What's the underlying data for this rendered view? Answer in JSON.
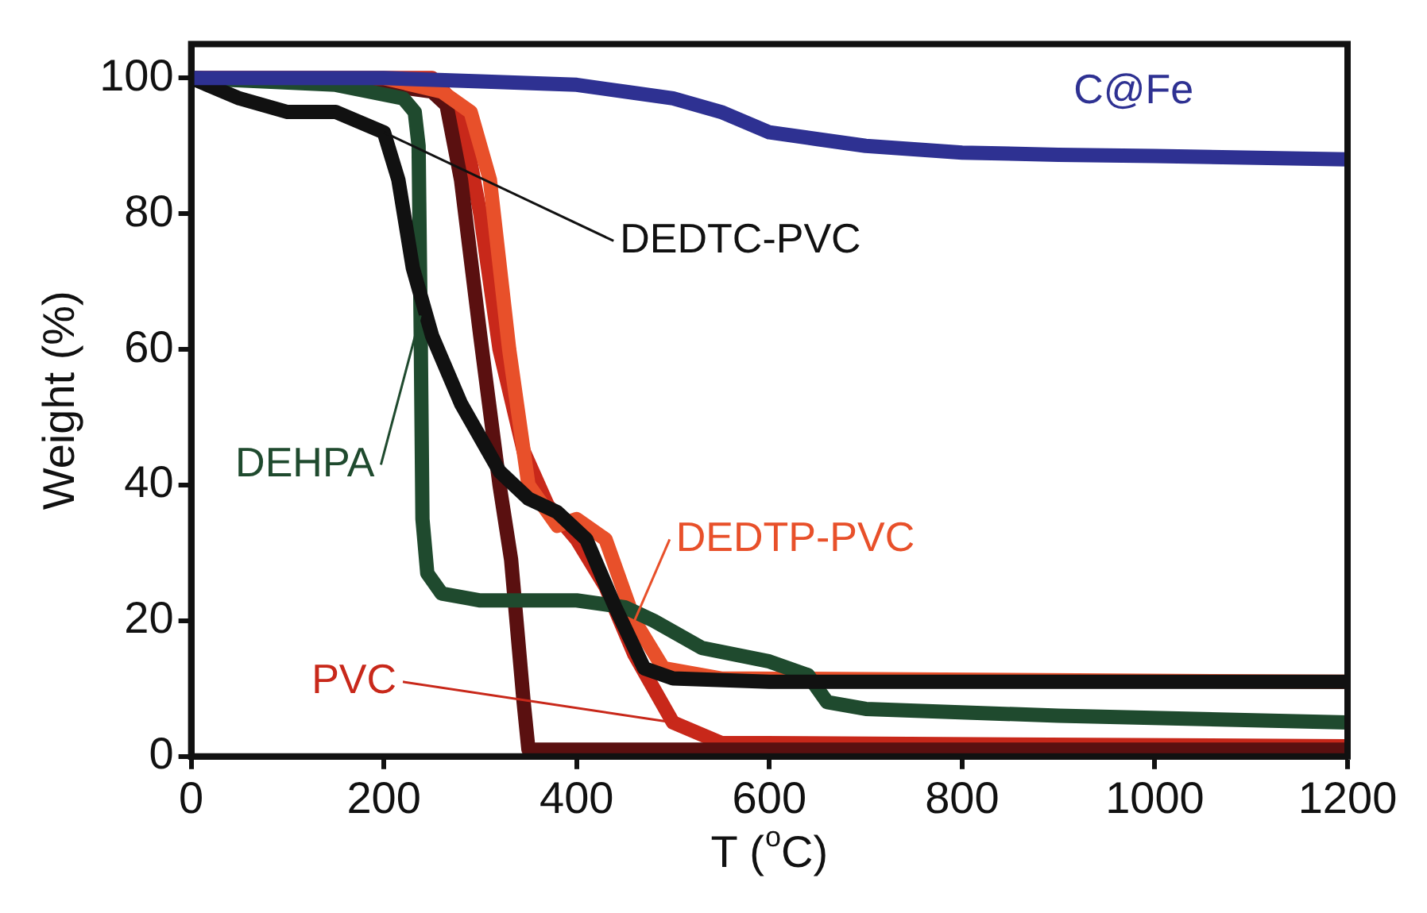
{
  "chart_data": {
    "type": "line",
    "xlabel": "T ($^{o}$C)",
    "ylabel": "Weight (%)",
    "xlim": [
      0,
      1200
    ],
    "ylim": [
      0,
      105
    ],
    "xticks": [
      0,
      200,
      400,
      600,
      800,
      1000,
      1200
    ],
    "yticks": [
      0,
      20,
      40,
      60,
      80,
      100
    ],
    "grid": false,
    "legend": false,
    "marker": "none",
    "line_style": "solid",
    "series": [
      {
        "name": "C@Fe",
        "color": "#2e3192",
        "x": [
          0,
          200,
          300,
          400,
          450,
          500,
          550,
          600,
          650,
          700,
          800,
          900,
          1000,
          1200
        ],
        "values": [
          100,
          100,
          99.5,
          99,
          98,
          97,
          95,
          92,
          91,
          90,
          89,
          88.7,
          88.5,
          88
        ]
      },
      {
        "name": "DEDTC-PVC",
        "color": "#111111",
        "x": [
          0,
          50,
          100,
          150,
          200,
          215,
          230,
          250,
          280,
          320,
          350,
          380,
          410,
          440,
          470,
          500,
          600,
          1200
        ],
        "values": [
          100,
          97,
          95,
          95,
          92,
          85,
          72,
          62,
          52,
          42,
          38,
          36,
          32,
          22,
          13,
          11.5,
          11,
          11
        ]
      },
      {
        "name": "DEHPA",
        "color": "#1f4a2e",
        "x": [
          0,
          150,
          220,
          232,
          236,
          238,
          240,
          245,
          260,
          300,
          400,
          450,
          480,
          530,
          600,
          640,
          660,
          700,
          900,
          1200
        ],
        "values": [
          100,
          99,
          97,
          95,
          90,
          65,
          35,
          27,
          24,
          23,
          23,
          22,
          20,
          16,
          14,
          12,
          8,
          7,
          6,
          5
        ]
      },
      {
        "name": "DEDTP-PVC",
        "color": "#e8502a",
        "x": [
          0,
          200,
          260,
          290,
          310,
          330,
          350,
          380,
          400,
          430,
          460,
          490,
          550,
          1200
        ],
        "values": [
          100,
          100,
          98,
          95,
          85,
          60,
          40,
          34,
          35,
          32,
          20,
          13,
          11.5,
          11
        ]
      },
      {
        "color": "#5a1010",
        "x": [
          0,
          200,
          250,
          265,
          280,
          300,
          320,
          332,
          345,
          350,
          1200
        ],
        "values": [
          100,
          99,
          98,
          96,
          85,
          62,
          40,
          29,
          8,
          1,
          1
        ]
      },
      {
        "name": "PVC",
        "color": "#c8281a",
        "x": [
          0,
          250,
          280,
          300,
          320,
          345,
          370,
          400,
          430,
          460,
          500,
          550,
          1200
        ],
        "values": [
          100,
          100,
          95,
          80,
          60,
          45,
          37,
          32,
          25,
          15,
          5,
          2,
          1.5
        ]
      }
    ]
  }
}
